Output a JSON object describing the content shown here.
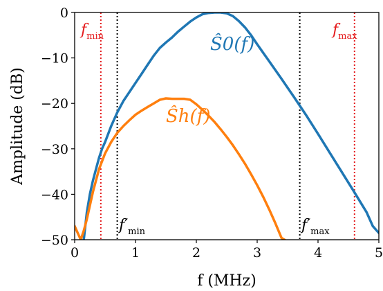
{
  "chart_data": {
    "type": "line",
    "xlabel": "f (MHz)",
    "ylabel": "Amplitude (dB)",
    "xlim": [
      0,
      5
    ],
    "ylim": [
      -50,
      0
    ],
    "xticks": [
      "0",
      "1",
      "2",
      "3",
      "4",
      "5"
    ],
    "yticks": [
      "0",
      "−10",
      "−20",
      "−30",
      "−40",
      "−50"
    ],
    "x_tick_values": [
      0,
      1,
      2,
      3,
      4,
      5
    ],
    "y_tick_values": [
      0,
      -10,
      -20,
      -30,
      -40,
      -50
    ],
    "grid": false,
    "series": [
      {
        "name": "Ŝ0(f)",
        "color": "#1f77b4",
        "x": [
          0.15,
          0.2,
          0.25,
          0.3,
          0.35,
          0.4,
          0.45,
          0.5,
          0.6,
          0.7,
          0.8,
          0.9,
          1.0,
          1.1,
          1.2,
          1.3,
          1.4,
          1.5,
          1.6,
          1.7,
          1.8,
          1.9,
          2.0,
          2.1,
          2.2,
          2.3,
          2.4,
          2.5,
          2.6,
          2.7,
          2.8,
          2.9,
          3.0,
          3.2,
          3.4,
          3.6,
          3.8,
          4.0,
          4.2,
          4.4,
          4.6,
          4.8,
          4.9,
          5.0
        ],
        "y": [
          -50,
          -44,
          -40,
          -37,
          -34.5,
          -32,
          -30,
          -28.5,
          -25,
          -22,
          -19.5,
          -17.5,
          -15.5,
          -13.5,
          -11.5,
          -9.5,
          -7.8,
          -6.6,
          -5.5,
          -4.2,
          -3.1,
          -2,
          -1.1,
          -0.4,
          -0.1,
          0,
          0,
          -0.2,
          -0.8,
          -1.9,
          -3.3,
          -5,
          -7,
          -10.8,
          -14.6,
          -18.5,
          -22.5,
          -26.7,
          -31,
          -35.3,
          -39.6,
          -44,
          -47,
          -48.5
        ]
      },
      {
        "name": "Ŝh(f)",
        "color": "#ff7f0e",
        "x": [
          0,
          0.05,
          0.1,
          0.15,
          0.2,
          0.25,
          0.3,
          0.35,
          0.4,
          0.5,
          0.6,
          0.7,
          0.8,
          0.9,
          1.0,
          1.1,
          1.2,
          1.3,
          1.4,
          1.5,
          1.6,
          1.7,
          1.8,
          1.9,
          2.0,
          2.1,
          2.2,
          2.3,
          2.4,
          2.5,
          2.6,
          2.7,
          2.8,
          2.9,
          3.0,
          3.1,
          3.2,
          3.3,
          3.4,
          3.45
        ],
        "y": [
          -47,
          -48.5,
          -50,
          -48,
          -45.5,
          -42.5,
          -39.5,
          -37,
          -34.5,
          -31,
          -28.5,
          -26.5,
          -25,
          -23.7,
          -22.5,
          -21.6,
          -20.8,
          -20,
          -19.2,
          -18.9,
          -19,
          -19,
          -19,
          -19.2,
          -20.2,
          -21.4,
          -22.7,
          -24.1,
          -25.7,
          -27.4,
          -29.2,
          -31.2,
          -33.3,
          -35.6,
          -38,
          -40.6,
          -43.4,
          -46.4,
          -49.6,
          -50
        ]
      }
    ],
    "vlines": [
      {
        "x": 0.43,
        "color": "#e41a1c"
      },
      {
        "x": 4.6,
        "color": "#e41a1c"
      },
      {
        "x": 0.7,
        "color": "#000000"
      },
      {
        "x": 3.7,
        "color": "#000000"
      }
    ],
    "annotations": {
      "fmin_red": {
        "main": "f",
        "sub": "min"
      },
      "fmax_red": {
        "main": "f",
        "sub": "max"
      },
      "fmin_prime": {
        "main": "f′",
        "sub": "min"
      },
      "fmax_prime": {
        "main": "f′",
        "sub": "max"
      },
      "s0_label": "Ŝ0(f)",
      "sh_label": "Ŝh(f)"
    }
  }
}
